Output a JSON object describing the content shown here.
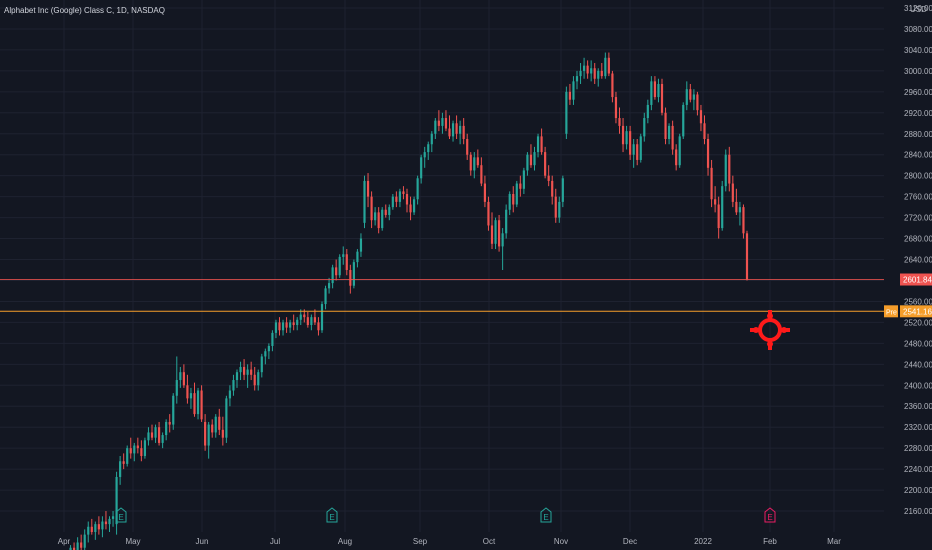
{
  "header": {
    "title": "Alphabet Inc (Google) Class C, 1D, NASDAQ"
  },
  "colors": {
    "background": "#131722",
    "grid": "#1e2230",
    "up": "#26a69a",
    "down": "#ef5350",
    "axis_text": "#b2b5be",
    "last_price_line": "#ef5350",
    "pre_line": "#f59d2a",
    "earnings_up": "#26a69a",
    "earnings_next": "#e91e63",
    "target": "#ff1a1a"
  },
  "chart_data": {
    "type": "candlestick",
    "symbol": "Alphabet Inc (Google) Class C",
    "interval": "1D",
    "exchange": "NASDAQ",
    "currency": "USD",
    "ylim": [
      2120,
      3120
    ],
    "y_ticks": [
      "2160.00",
      "2200.00",
      "2240.00",
      "2280.00",
      "2320.00",
      "2360.00",
      "2400.00",
      "2440.00",
      "2480.00",
      "2520.00",
      "2560.00",
      "2600.00",
      "2640.00",
      "2680.00",
      "2720.00",
      "2760.00",
      "2800.00",
      "2840.00",
      "2880.00",
      "2920.00",
      "2960.00",
      "3000.00",
      "3040.00",
      "3080.00",
      "3120.00"
    ],
    "x_ticks": [
      "Apr",
      "May",
      "Jun",
      "Jul",
      "Aug",
      "Sep",
      "Oct",
      "Nov",
      "Dec",
      "2022",
      "Feb",
      "Mar"
    ],
    "candles": [
      {
        "o": 2070,
        "h": 2085,
        "l": 2055,
        "c": 2075
      },
      {
        "o": 2075,
        "h": 2095,
        "l": 2065,
        "c": 2090
      },
      {
        "o": 2090,
        "h": 2100,
        "l": 2075,
        "c": 2080
      },
      {
        "o": 2080,
        "h": 2110,
        "l": 2070,
        "c": 2100
      },
      {
        "o": 2100,
        "h": 2115,
        "l": 2085,
        "c": 2090
      },
      {
        "o": 2090,
        "h": 2125,
        "l": 2080,
        "c": 2115
      },
      {
        "o": 2115,
        "h": 2140,
        "l": 2100,
        "c": 2130
      },
      {
        "o": 2130,
        "h": 2145,
        "l": 2115,
        "c": 2120
      },
      {
        "o": 2120,
        "h": 2140,
        "l": 2105,
        "c": 2135
      },
      {
        "o": 2135,
        "h": 2150,
        "l": 2115,
        "c": 2125
      },
      {
        "o": 2125,
        "h": 2150,
        "l": 2110,
        "c": 2140
      },
      {
        "o": 2140,
        "h": 2160,
        "l": 2125,
        "c": 2135
      },
      {
        "o": 2135,
        "h": 2150,
        "l": 2120,
        "c": 2145
      },
      {
        "o": 2145,
        "h": 2160,
        "l": 2130,
        "c": 2150
      },
      {
        "o": 2135,
        "h": 2235,
        "l": 2115,
        "c": 2225
      },
      {
        "o": 2225,
        "h": 2265,
        "l": 2210,
        "c": 2255
      },
      {
        "o": 2255,
        "h": 2270,
        "l": 2240,
        "c": 2250
      },
      {
        "o": 2250,
        "h": 2285,
        "l": 2245,
        "c": 2280
      },
      {
        "o": 2280,
        "h": 2300,
        "l": 2260,
        "c": 2270
      },
      {
        "o": 2270,
        "h": 2290,
        "l": 2255,
        "c": 2285
      },
      {
        "o": 2285,
        "h": 2300,
        "l": 2270,
        "c": 2280
      },
      {
        "o": 2280,
        "h": 2295,
        "l": 2255,
        "c": 2265
      },
      {
        "o": 2265,
        "h": 2300,
        "l": 2260,
        "c": 2295
      },
      {
        "o": 2295,
        "h": 2320,
        "l": 2285,
        "c": 2310
      },
      {
        "o": 2310,
        "h": 2325,
        "l": 2295,
        "c": 2300
      },
      {
        "o": 2300,
        "h": 2325,
        "l": 2290,
        "c": 2320
      },
      {
        "o": 2320,
        "h": 2330,
        "l": 2285,
        "c": 2290
      },
      {
        "o": 2290,
        "h": 2310,
        "l": 2280,
        "c": 2305
      },
      {
        "o": 2305,
        "h": 2335,
        "l": 2295,
        "c": 2330
      },
      {
        "o": 2330,
        "h": 2345,
        "l": 2310,
        "c": 2325
      },
      {
        "o": 2325,
        "h": 2385,
        "l": 2315,
        "c": 2380
      },
      {
        "o": 2380,
        "h": 2455,
        "l": 2365,
        "c": 2410
      },
      {
        "o": 2410,
        "h": 2435,
        "l": 2395,
        "c": 2425
      },
      {
        "o": 2425,
        "h": 2440,
        "l": 2395,
        "c": 2400
      },
      {
        "o": 2400,
        "h": 2420,
        "l": 2365,
        "c": 2375
      },
      {
        "o": 2375,
        "h": 2395,
        "l": 2355,
        "c": 2385
      },
      {
        "o": 2385,
        "h": 2405,
        "l": 2340,
        "c": 2345
      },
      {
        "o": 2345,
        "h": 2395,
        "l": 2335,
        "c": 2390
      },
      {
        "o": 2390,
        "h": 2400,
        "l": 2330,
        "c": 2335
      },
      {
        "o": 2330,
        "h": 2345,
        "l": 2275,
        "c": 2285
      },
      {
        "o": 2285,
        "h": 2330,
        "l": 2260,
        "c": 2325
      },
      {
        "o": 2325,
        "h": 2335,
        "l": 2300,
        "c": 2310
      },
      {
        "o": 2310,
        "h": 2345,
        "l": 2300,
        "c": 2340
      },
      {
        "o": 2340,
        "h": 2355,
        "l": 2305,
        "c": 2315
      },
      {
        "o": 2315,
        "h": 2340,
        "l": 2285,
        "c": 2300
      },
      {
        "o": 2300,
        "h": 2380,
        "l": 2290,
        "c": 2375
      },
      {
        "o": 2375,
        "h": 2400,
        "l": 2360,
        "c": 2390
      },
      {
        "o": 2390,
        "h": 2420,
        "l": 2380,
        "c": 2410
      },
      {
        "o": 2410,
        "h": 2430,
        "l": 2395,
        "c": 2425
      },
      {
        "o": 2425,
        "h": 2445,
        "l": 2410,
        "c": 2435
      },
      {
        "o": 2435,
        "h": 2450,
        "l": 2410,
        "c": 2420
      },
      {
        "o": 2420,
        "h": 2440,
        "l": 2395,
        "c": 2430
      },
      {
        "o": 2430,
        "h": 2445,
        "l": 2410,
        "c": 2420
      },
      {
        "o": 2420,
        "h": 2435,
        "l": 2390,
        "c": 2400
      },
      {
        "o": 2400,
        "h": 2430,
        "l": 2390,
        "c": 2425
      },
      {
        "o": 2425,
        "h": 2460,
        "l": 2415,
        "c": 2455
      },
      {
        "o": 2455,
        "h": 2470,
        "l": 2440,
        "c": 2465
      },
      {
        "o": 2465,
        "h": 2480,
        "l": 2450,
        "c": 2475
      },
      {
        "o": 2475,
        "h": 2505,
        "l": 2465,
        "c": 2500
      },
      {
        "o": 2500,
        "h": 2525,
        "l": 2490,
        "c": 2520
      },
      {
        "o": 2520,
        "h": 2530,
        "l": 2495,
        "c": 2505
      },
      {
        "o": 2505,
        "h": 2525,
        "l": 2495,
        "c": 2520
      },
      {
        "o": 2520,
        "h": 2530,
        "l": 2500,
        "c": 2510
      },
      {
        "o": 2510,
        "h": 2525,
        "l": 2500,
        "c": 2520
      },
      {
        "o": 2520,
        "h": 2535,
        "l": 2505,
        "c": 2515
      },
      {
        "o": 2515,
        "h": 2530,
        "l": 2505,
        "c": 2525
      },
      {
        "o": 2525,
        "h": 2545,
        "l": 2515,
        "c": 2535
      },
      {
        "o": 2535,
        "h": 2545,
        "l": 2520,
        "c": 2530
      },
      {
        "o": 2530,
        "h": 2540,
        "l": 2510,
        "c": 2515
      },
      {
        "o": 2515,
        "h": 2535,
        "l": 2505,
        "c": 2530
      },
      {
        "o": 2530,
        "h": 2545,
        "l": 2515,
        "c": 2520
      },
      {
        "o": 2520,
        "h": 2530,
        "l": 2495,
        "c": 2505
      },
      {
        "o": 2505,
        "h": 2560,
        "l": 2500,
        "c": 2555
      },
      {
        "o": 2555,
        "h": 2590,
        "l": 2545,
        "c": 2585
      },
      {
        "o": 2585,
        "h": 2605,
        "l": 2575,
        "c": 2595
      },
      {
        "o": 2595,
        "h": 2630,
        "l": 2585,
        "c": 2625
      },
      {
        "o": 2625,
        "h": 2640,
        "l": 2600,
        "c": 2610
      },
      {
        "o": 2610,
        "h": 2650,
        "l": 2605,
        "c": 2645
      },
      {
        "o": 2645,
        "h": 2665,
        "l": 2630,
        "c": 2650
      },
      {
        "o": 2650,
        "h": 2660,
        "l": 2610,
        "c": 2620
      },
      {
        "o": 2620,
        "h": 2630,
        "l": 2575,
        "c": 2590
      },
      {
        "o": 2590,
        "h": 2640,
        "l": 2585,
        "c": 2635
      },
      {
        "o": 2635,
        "h": 2660,
        "l": 2625,
        "c": 2655
      },
      {
        "o": 2655,
        "h": 2690,
        "l": 2645,
        "c": 2680
      },
      {
        "o": 2710,
        "h": 2800,
        "l": 2700,
        "c": 2790
      },
      {
        "o": 2790,
        "h": 2805,
        "l": 2740,
        "c": 2760
      },
      {
        "o": 2760,
        "h": 2770,
        "l": 2700,
        "c": 2715
      },
      {
        "o": 2715,
        "h": 2740,
        "l": 2705,
        "c": 2730
      },
      {
        "o": 2730,
        "h": 2740,
        "l": 2690,
        "c": 2700
      },
      {
        "o": 2700,
        "h": 2740,
        "l": 2695,
        "c": 2735
      },
      {
        "o": 2735,
        "h": 2745,
        "l": 2720,
        "c": 2725
      },
      {
        "o": 2725,
        "h": 2745,
        "l": 2715,
        "c": 2740
      },
      {
        "o": 2740,
        "h": 2765,
        "l": 2735,
        "c": 2760
      },
      {
        "o": 2760,
        "h": 2770,
        "l": 2740,
        "c": 2750
      },
      {
        "o": 2750,
        "h": 2775,
        "l": 2740,
        "c": 2770
      },
      {
        "o": 2770,
        "h": 2780,
        "l": 2755,
        "c": 2765
      },
      {
        "o": 2765,
        "h": 2775,
        "l": 2730,
        "c": 2745
      },
      {
        "o": 2745,
        "h": 2760,
        "l": 2715,
        "c": 2730
      },
      {
        "o": 2730,
        "h": 2760,
        "l": 2725,
        "c": 2755
      },
      {
        "o": 2755,
        "h": 2800,
        "l": 2745,
        "c": 2795
      },
      {
        "o": 2795,
        "h": 2840,
        "l": 2785,
        "c": 2835
      },
      {
        "o": 2835,
        "h": 2855,
        "l": 2815,
        "c": 2845
      },
      {
        "o": 2845,
        "h": 2865,
        "l": 2830,
        "c": 2860
      },
      {
        "o": 2860,
        "h": 2885,
        "l": 2845,
        "c": 2880
      },
      {
        "o": 2880,
        "h": 2910,
        "l": 2870,
        "c": 2905
      },
      {
        "o": 2905,
        "h": 2925,
        "l": 2885,
        "c": 2895
      },
      {
        "o": 2895,
        "h": 2920,
        "l": 2880,
        "c": 2910
      },
      {
        "o": 2910,
        "h": 2925,
        "l": 2885,
        "c": 2890
      },
      {
        "o": 2890,
        "h": 2915,
        "l": 2870,
        "c": 2875
      },
      {
        "o": 2875,
        "h": 2905,
        "l": 2865,
        "c": 2900
      },
      {
        "o": 2900,
        "h": 2915,
        "l": 2870,
        "c": 2880
      },
      {
        "o": 2880,
        "h": 2905,
        "l": 2860,
        "c": 2895
      },
      {
        "o": 2895,
        "h": 2910,
        "l": 2860,
        "c": 2870
      },
      {
        "o": 2870,
        "h": 2880,
        "l": 2830,
        "c": 2840
      },
      {
        "o": 2840,
        "h": 2845,
        "l": 2800,
        "c": 2810
      },
      {
        "o": 2810,
        "h": 2845,
        "l": 2795,
        "c": 2835
      },
      {
        "o": 2835,
        "h": 2850,
        "l": 2815,
        "c": 2820
      },
      {
        "o": 2820,
        "h": 2835,
        "l": 2780,
        "c": 2785
      },
      {
        "o": 2785,
        "h": 2800,
        "l": 2740,
        "c": 2750
      },
      {
        "o": 2750,
        "h": 2760,
        "l": 2695,
        "c": 2705
      },
      {
        "o": 2705,
        "h": 2730,
        "l": 2660,
        "c": 2670
      },
      {
        "o": 2670,
        "h": 2720,
        "l": 2660,
        "c": 2715
      },
      {
        "o": 2715,
        "h": 2725,
        "l": 2655,
        "c": 2665
      },
      {
        "o": 2665,
        "h": 2700,
        "l": 2620,
        "c": 2690
      },
      {
        "o": 2690,
        "h": 2745,
        "l": 2680,
        "c": 2735
      },
      {
        "o": 2735,
        "h": 2770,
        "l": 2725,
        "c": 2765
      },
      {
        "o": 2765,
        "h": 2780,
        "l": 2730,
        "c": 2745
      },
      {
        "o": 2745,
        "h": 2790,
        "l": 2740,
        "c": 2785
      },
      {
        "o": 2785,
        "h": 2800,
        "l": 2760,
        "c": 2775
      },
      {
        "o": 2775,
        "h": 2815,
        "l": 2765,
        "c": 2810
      },
      {
        "o": 2810,
        "h": 2845,
        "l": 2800,
        "c": 2840
      },
      {
        "o": 2840,
        "h": 2860,
        "l": 2815,
        "c": 2820
      },
      {
        "o": 2820,
        "h": 2855,
        "l": 2810,
        "c": 2845
      },
      {
        "o": 2845,
        "h": 2880,
        "l": 2835,
        "c": 2875
      },
      {
        "o": 2875,
        "h": 2890,
        "l": 2840,
        "c": 2845
      },
      {
        "o": 2845,
        "h": 2855,
        "l": 2795,
        "c": 2800
      },
      {
        "o": 2800,
        "h": 2820,
        "l": 2780,
        "c": 2790
      },
      {
        "o": 2790,
        "h": 2800,
        "l": 2745,
        "c": 2760
      },
      {
        "o": 2760,
        "h": 2775,
        "l": 2710,
        "c": 2720
      },
      {
        "o": 2720,
        "h": 2760,
        "l": 2710,
        "c": 2750
      },
      {
        "o": 2750,
        "h": 2800,
        "l": 2740,
        "c": 2795
      },
      {
        "o": 2880,
        "h": 2970,
        "l": 2870,
        "c": 2960
      },
      {
        "o": 2960,
        "h": 2975,
        "l": 2935,
        "c": 2945
      },
      {
        "o": 2945,
        "h": 2990,
        "l": 2935,
        "c": 2980
      },
      {
        "o": 2980,
        "h": 3000,
        "l": 2965,
        "c": 2990
      },
      {
        "o": 2990,
        "h": 3015,
        "l": 2975,
        "c": 3000
      },
      {
        "o": 3000,
        "h": 3025,
        "l": 2985,
        "c": 3010
      },
      {
        "o": 3010,
        "h": 3020,
        "l": 2985,
        "c": 2995
      },
      {
        "o": 2995,
        "h": 3020,
        "l": 2980,
        "c": 3005
      },
      {
        "o": 3005,
        "h": 3015,
        "l": 2975,
        "c": 2985
      },
      {
        "o": 2985,
        "h": 3005,
        "l": 2970,
        "c": 3000
      },
      {
        "o": 3000,
        "h": 3015,
        "l": 2985,
        "c": 2990
      },
      {
        "o": 2990,
        "h": 3035,
        "l": 2985,
        "c": 3025
      },
      {
        "o": 3025,
        "h": 3035,
        "l": 2990,
        "c": 2995
      },
      {
        "o": 2995,
        "h": 3000,
        "l": 2940,
        "c": 2950
      },
      {
        "o": 2950,
        "h": 2960,
        "l": 2900,
        "c": 2910
      },
      {
        "o": 2910,
        "h": 2930,
        "l": 2880,
        "c": 2895
      },
      {
        "o": 2895,
        "h": 2910,
        "l": 2845,
        "c": 2860
      },
      {
        "o": 2860,
        "h": 2895,
        "l": 2850,
        "c": 2885
      },
      {
        "o": 2885,
        "h": 2895,
        "l": 2830,
        "c": 2840
      },
      {
        "o": 2840,
        "h": 2870,
        "l": 2815,
        "c": 2860
      },
      {
        "o": 2860,
        "h": 2870,
        "l": 2820,
        "c": 2830
      },
      {
        "o": 2830,
        "h": 2880,
        "l": 2825,
        "c": 2875
      },
      {
        "o": 2875,
        "h": 2920,
        "l": 2865,
        "c": 2910
      },
      {
        "o": 2910,
        "h": 2945,
        "l": 2900,
        "c": 2935
      },
      {
        "o": 2935,
        "h": 2990,
        "l": 2925,
        "c": 2980
      },
      {
        "o": 2980,
        "h": 2990,
        "l": 2945,
        "c": 2950
      },
      {
        "o": 2950,
        "h": 2985,
        "l": 2940,
        "c": 2975
      },
      {
        "o": 2975,
        "h": 2985,
        "l": 2915,
        "c": 2920
      },
      {
        "o": 2920,
        "h": 2930,
        "l": 2860,
        "c": 2870
      },
      {
        "o": 2870,
        "h": 2900,
        "l": 2860,
        "c": 2895
      },
      {
        "o": 2895,
        "h": 2905,
        "l": 2840,
        "c": 2850
      },
      {
        "o": 2850,
        "h": 2860,
        "l": 2810,
        "c": 2820
      },
      {
        "o": 2820,
        "h": 2880,
        "l": 2815,
        "c": 2875
      },
      {
        "o": 2875,
        "h": 2940,
        "l": 2870,
        "c": 2935
      },
      {
        "o": 2935,
        "h": 2980,
        "l": 2925,
        "c": 2965
      },
      {
        "o": 2965,
        "h": 2975,
        "l": 2940,
        "c": 2945
      },
      {
        "o": 2945,
        "h": 2965,
        "l": 2925,
        "c": 2955
      },
      {
        "o": 2955,
        "h": 2960,
        "l": 2915,
        "c": 2925
      },
      {
        "o": 2925,
        "h": 2935,
        "l": 2885,
        "c": 2900
      },
      {
        "o": 2900,
        "h": 2915,
        "l": 2860,
        "c": 2870
      },
      {
        "o": 2870,
        "h": 2880,
        "l": 2800,
        "c": 2815
      },
      {
        "o": 2815,
        "h": 2830,
        "l": 2740,
        "c": 2755
      },
      {
        "o": 2755,
        "h": 2780,
        "l": 2730,
        "c": 2745
      },
      {
        "o": 2745,
        "h": 2760,
        "l": 2680,
        "c": 2700
      },
      {
        "o": 2700,
        "h": 2790,
        "l": 2695,
        "c": 2780
      },
      {
        "o": 2780,
        "h": 2850,
        "l": 2770,
        "c": 2840
      },
      {
        "o": 2840,
        "h": 2855,
        "l": 2770,
        "c": 2785
      },
      {
        "o": 2785,
        "h": 2800,
        "l": 2740,
        "c": 2750
      },
      {
        "o": 2750,
        "h": 2775,
        "l": 2725,
        "c": 2730
      },
      {
        "o": 2730,
        "h": 2750,
        "l": 2705,
        "c": 2740
      },
      {
        "o": 2740,
        "h": 2745,
        "l": 2680,
        "c": 2690
      },
      {
        "o": 2690,
        "h": 2695,
        "l": 2600,
        "c": 2601.84
      }
    ],
    "last_price": "2601.84",
    "last_price_line": 2601.84,
    "premarket_price": "2541.16",
    "premarket_label": "Pre",
    "earnings_markers": [
      "E",
      "E",
      "E",
      "E"
    ]
  }
}
